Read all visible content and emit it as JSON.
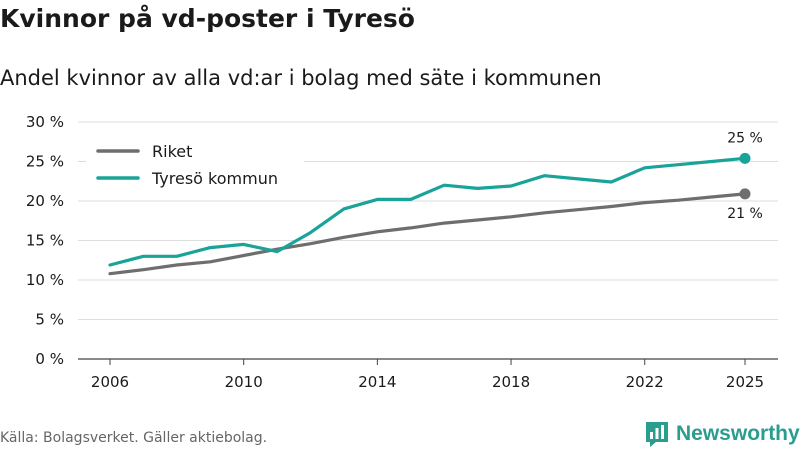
{
  "title": "Kvinnor på vd-poster i Tyresö",
  "subtitle": "Andel kvinnor av alla vd:ar i bolag med säte i kommunen",
  "source": "Källa: Bolagsverket. Gäller aktiebolag.",
  "brand": "Newsworthy",
  "brand_icon": "bar-chart-logo-icon",
  "chart_data": {
    "type": "line",
    "x": [
      2006,
      2007,
      2008,
      2009,
      2010,
      2011,
      2012,
      2013,
      2014,
      2015,
      2016,
      2017,
      2018,
      2019,
      2020,
      2021,
      2022,
      2023,
      2024,
      2025
    ],
    "series": [
      {
        "name": "Riket",
        "color": "#6e6e6e",
        "values": [
          10.8,
          11.3,
          11.9,
          12.3,
          13.1,
          13.9,
          14.6,
          15.4,
          16.1,
          16.6,
          17.2,
          17.6,
          18.0,
          18.5,
          18.9,
          19.3,
          19.8,
          20.1,
          20.5,
          20.9
        ],
        "end_label": "21 %"
      },
      {
        "name": "Tyresö kommun",
        "color": "#1aa399",
        "values": [
          11.9,
          13.0,
          13.0,
          14.1,
          14.5,
          13.6,
          16.0,
          19.0,
          20.2,
          20.2,
          22.0,
          21.6,
          21.9,
          23.2,
          22.8,
          22.4,
          24.2,
          24.6,
          25.0,
          25.4
        ],
        "end_label": "25 %"
      }
    ],
    "y_ticks": [
      0,
      5,
      10,
      15,
      20,
      25,
      30
    ],
    "y_tick_labels": [
      "0 %",
      "5 %",
      "10 %",
      "15 %",
      "20 %",
      "25 %",
      "30 %"
    ],
    "x_ticks": [
      2006,
      2010,
      2014,
      2018,
      2022,
      2025
    ],
    "x_tick_labels": [
      "2006",
      "2010",
      "2014",
      "2018",
      "2022",
      "2025"
    ],
    "ylim": [
      0,
      30
    ],
    "xlim": [
      2006,
      2025
    ],
    "grid": true,
    "legend_position": "top-left"
  }
}
